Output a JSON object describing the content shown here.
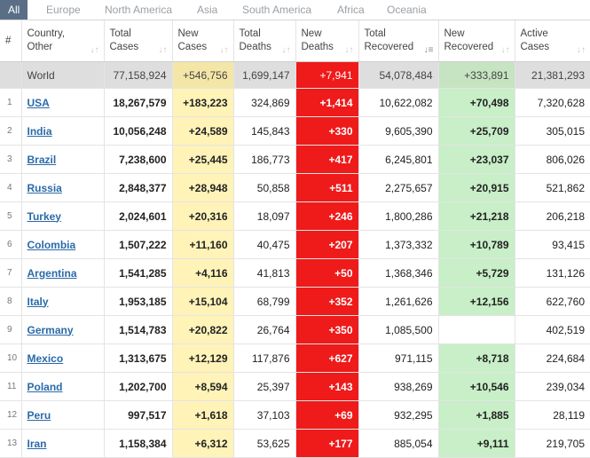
{
  "tabs": [
    "All",
    "Europe",
    "North America",
    "Asia",
    "South America",
    "Africa",
    "Oceania"
  ],
  "headers": {
    "num": "#",
    "country": [
      "Country,",
      "Other"
    ],
    "total_cases": [
      "Total",
      "Cases"
    ],
    "new_cases": [
      "New",
      "Cases"
    ],
    "total_deaths": [
      "Total",
      "Deaths"
    ],
    "new_deaths": [
      "New",
      "Deaths"
    ],
    "total_recovered": [
      "Total",
      "Recovered"
    ],
    "new_recovered": [
      "New",
      "Recovered"
    ],
    "active_cases": [
      "Active",
      "Cases"
    ]
  },
  "sort_icon": "sort-arrows-icon",
  "world": {
    "country": "World",
    "total_cases": "77,158,924",
    "new_cases": "+546,756",
    "total_deaths": "1,699,147",
    "new_deaths": "+7,941",
    "total_recovered": "54,078,484",
    "new_recovered": "+333,891",
    "active_cases": "21,381,293"
  },
  "rows": [
    {
      "num": "1",
      "country": "USA",
      "total_cases": "18,267,579",
      "new_cases": "+183,223",
      "total_deaths": "324,869",
      "new_deaths": "+1,414",
      "total_recovered": "10,622,082",
      "new_recovered": "+70,498",
      "active_cases": "7,320,628"
    },
    {
      "num": "2",
      "country": "India",
      "total_cases": "10,056,248",
      "new_cases": "+24,589",
      "total_deaths": "145,843",
      "new_deaths": "+330",
      "total_recovered": "9,605,390",
      "new_recovered": "+25,709",
      "active_cases": "305,015"
    },
    {
      "num": "3",
      "country": "Brazil",
      "total_cases": "7,238,600",
      "new_cases": "+25,445",
      "total_deaths": "186,773",
      "new_deaths": "+417",
      "total_recovered": "6,245,801",
      "new_recovered": "+23,037",
      "active_cases": "806,026"
    },
    {
      "num": "4",
      "country": "Russia",
      "total_cases": "2,848,377",
      "new_cases": "+28,948",
      "total_deaths": "50,858",
      "new_deaths": "+511",
      "total_recovered": "2,275,657",
      "new_recovered": "+20,915",
      "active_cases": "521,862"
    },
    {
      "num": "5",
      "country": "Turkey",
      "total_cases": "2,024,601",
      "new_cases": "+20,316",
      "total_deaths": "18,097",
      "new_deaths": "+246",
      "total_recovered": "1,800,286",
      "new_recovered": "+21,218",
      "active_cases": "206,218"
    },
    {
      "num": "6",
      "country": "Colombia",
      "total_cases": "1,507,222",
      "new_cases": "+11,160",
      "total_deaths": "40,475",
      "new_deaths": "+207",
      "total_recovered": "1,373,332",
      "new_recovered": "+10,789",
      "active_cases": "93,415"
    },
    {
      "num": "7",
      "country": "Argentina",
      "total_cases": "1,541,285",
      "new_cases": "+4,116",
      "total_deaths": "41,813",
      "new_deaths": "+50",
      "total_recovered": "1,368,346",
      "new_recovered": "+5,729",
      "active_cases": "131,126"
    },
    {
      "num": "8",
      "country": "Italy",
      "total_cases": "1,953,185",
      "new_cases": "+15,104",
      "total_deaths": "68,799",
      "new_deaths": "+352",
      "total_recovered": "1,261,626",
      "new_recovered": "+12,156",
      "active_cases": "622,760"
    },
    {
      "num": "9",
      "country": "Germany",
      "total_cases": "1,514,783",
      "new_cases": "+20,822",
      "total_deaths": "26,764",
      "new_deaths": "+350",
      "total_recovered": "1,085,500",
      "new_recovered": "",
      "active_cases": "402,519"
    },
    {
      "num": "10",
      "country": "Mexico",
      "total_cases": "1,313,675",
      "new_cases": "+12,129",
      "total_deaths": "117,876",
      "new_deaths": "+627",
      "total_recovered": "971,115",
      "new_recovered": "+8,718",
      "active_cases": "224,684"
    },
    {
      "num": "11",
      "country": "Poland",
      "total_cases": "1,202,700",
      "new_cases": "+8,594",
      "total_deaths": "25,397",
      "new_deaths": "+143",
      "total_recovered": "938,269",
      "new_recovered": "+10,546",
      "active_cases": "239,034"
    },
    {
      "num": "12",
      "country": "Peru",
      "total_cases": "997,517",
      "new_cases": "+1,618",
      "total_deaths": "37,103",
      "new_deaths": "+69",
      "total_recovered": "932,295",
      "new_recovered": "+1,885",
      "active_cases": "28,119"
    },
    {
      "num": "13",
      "country": "Iran",
      "total_cases": "1,158,384",
      "new_cases": "+6,312",
      "total_deaths": "53,625",
      "new_deaths": "+177",
      "total_recovered": "885,054",
      "new_recovered": "+9,111",
      "active_cases": "219,705"
    }
  ],
  "colors": {
    "tab_active_bg": "#5a6f86",
    "new_cases_bg": "#fff3b8",
    "new_deaths_bg": "#ef1a1a",
    "new_recovered_bg": "#c8efc8",
    "world_row_bg": "#dedede",
    "link": "#2a6aa8"
  }
}
